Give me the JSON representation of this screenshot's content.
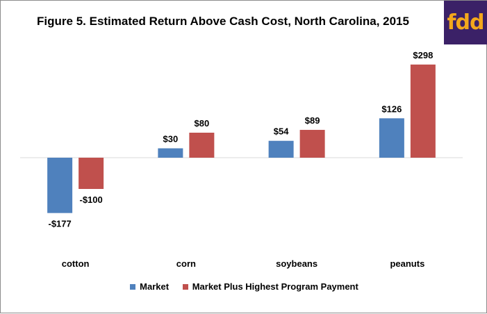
{
  "logo_text": "fdd",
  "chart_data": {
    "type": "bar",
    "title": "Figure 5. Estimated Return Above Cash Cost, North Carolina, 2015",
    "categories": [
      "cotton",
      "corn",
      "soybeans",
      "peanuts"
    ],
    "series": [
      {
        "name": "Market",
        "values": [
          -177,
          30,
          54,
          126
        ],
        "labels": [
          "-$177",
          "$30",
          "$54",
          "$126"
        ],
        "color": "#4f81bd"
      },
      {
        "name": "Market Plus Highest Program Payment",
        "values": [
          -100,
          80,
          89,
          298
        ],
        "labels": [
          "-$100",
          "$80",
          "$89",
          "$298"
        ],
        "color": "#c0504d"
      }
    ],
    "ylim": [
      -180,
      300
    ],
    "grid": false,
    "legend": "bottom",
    "xlabel": "",
    "ylabel": ""
  }
}
